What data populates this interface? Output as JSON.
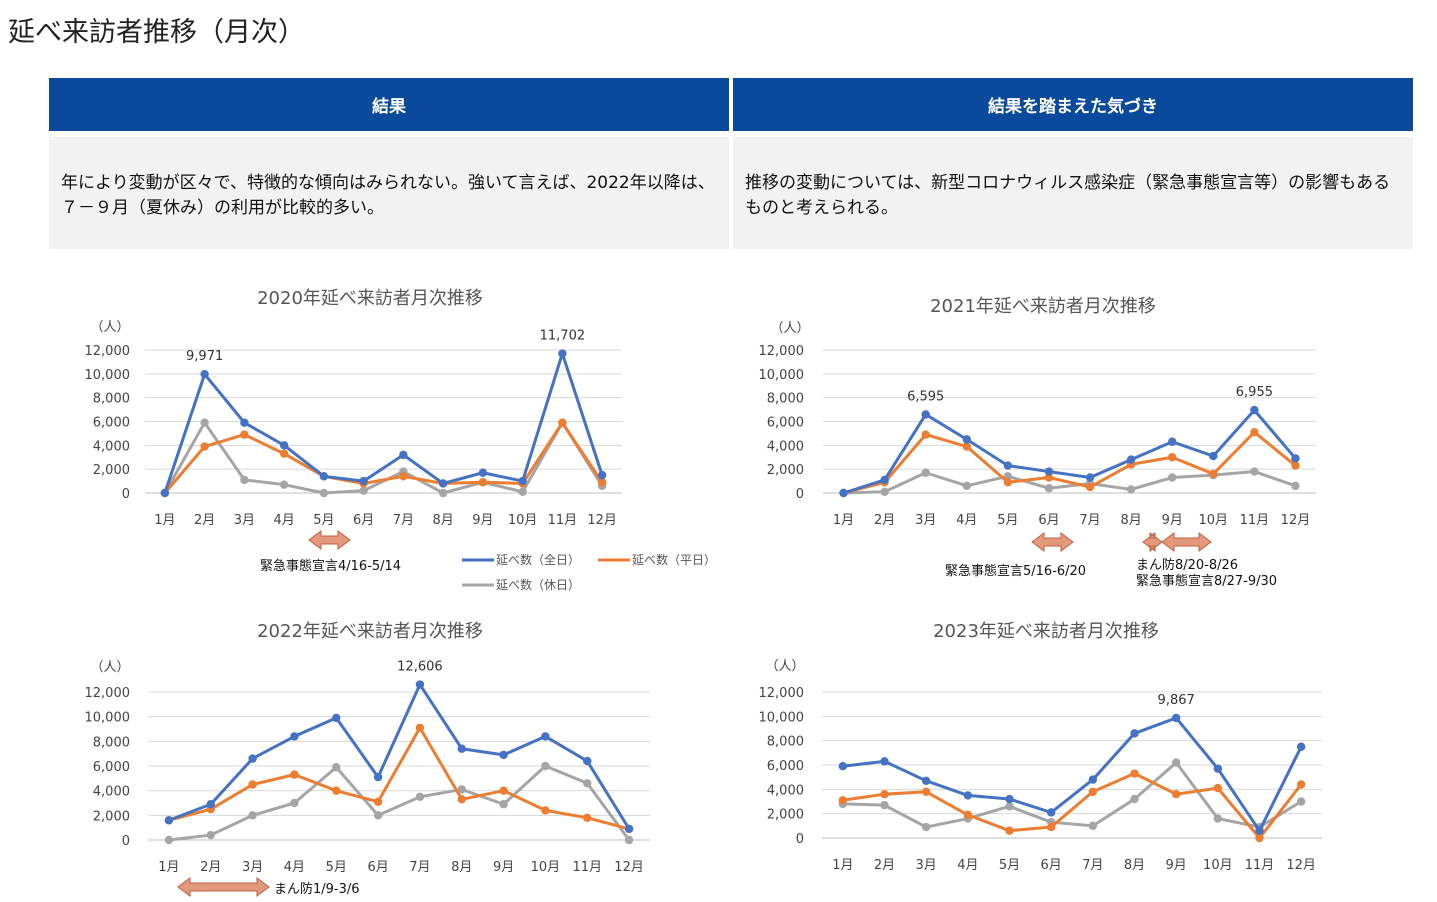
{
  "page_title": "延べ来訪者推移（月次）",
  "panel_left": {
    "header": "結果",
    "body": "年により変動が区々で、特徴的な傾向はみられない。強いて言えば、2022年以降は、７－９月（夏休み）の利用が比較的多い。"
  },
  "panel_right": {
    "header": "結果を踏まえた気づき",
    "body": "推移の変動については、新型コロナウィルス感染症（緊急事態宣言等）の影響もあるものと考えられる。"
  },
  "colors": {
    "all": "#4472c4",
    "weekday": "#ed7d31",
    "holiday": "#a5a5a5",
    "arrow_fill": "#e2997c",
    "arrow_stroke": "#c0603f"
  },
  "legend": [
    "延べ数（全日）",
    "延べ数（平日）",
    "延べ数（休日）"
  ],
  "chart_data": [
    {
      "type": "line",
      "title": "2020年延べ来訪者月次推移",
      "ylabel": "（人）",
      "ylim": [
        0,
        12000
      ],
      "yticks": [
        "0",
        "2,000",
        "4,000",
        "6,000",
        "8,000",
        "10,000",
        "12,000"
      ],
      "categories": [
        "1月",
        "2月",
        "3月",
        "4月",
        "5月",
        "6月",
        "7月",
        "8月",
        "9月",
        "10月",
        "11月",
        "12月"
      ],
      "series": [
        {
          "name": "延べ数（全日）",
          "values": [
            0,
            9971,
            5900,
            4000,
            1400,
            1000,
            3200,
            800,
            1700,
            1000,
            11702,
            1500
          ]
        },
        {
          "name": "延べ数（平日）",
          "values": [
            0,
            3900,
            4900,
            3300,
            1400,
            800,
            1400,
            800,
            900,
            800,
            5900,
            900
          ]
        },
        {
          "name": "延べ数（休日）",
          "values": [
            0,
            5900,
            1100,
            700,
            0,
            200,
            1800,
            0,
            900,
            100,
            5900,
            600
          ]
        }
      ],
      "labels": [
        {
          "series": 0,
          "index": 1,
          "text": "9,971"
        },
        {
          "series": 0,
          "index": 10,
          "text": "11,702"
        }
      ],
      "annotations": [
        {
          "text": "緊急事態宣言4/16-5/14"
        }
      ]
    },
    {
      "type": "line",
      "title": "2021年延べ来訪者月次推移",
      "ylabel": "（人）",
      "ylim": [
        0,
        12000
      ],
      "yticks": [
        "0",
        "2,000",
        "4,000",
        "6,000",
        "8,000",
        "10,000",
        "12,000"
      ],
      "categories": [
        "1月",
        "2月",
        "3月",
        "4月",
        "5月",
        "6月",
        "7月",
        "8月",
        "9月",
        "10月",
        "11月",
        "12月"
      ],
      "series": [
        {
          "name": "延べ数（全日）",
          "values": [
            0,
            1100,
            6595,
            4500,
            2300,
            1800,
            1300,
            2800,
            4300,
            3100,
            6955,
            2900
          ]
        },
        {
          "name": "延べ数（平日）",
          "values": [
            0,
            900,
            4900,
            3900,
            900,
            1300,
            500,
            2400,
            3000,
            1600,
            5100,
            2300
          ]
        },
        {
          "name": "延べ数（休日）",
          "values": [
            0,
            100,
            1700,
            600,
            1400,
            400,
            800,
            300,
            1300,
            1500,
            1800,
            600
          ]
        }
      ],
      "labels": [
        {
          "series": 0,
          "index": 2,
          "text": "6,595"
        },
        {
          "series": 0,
          "index": 10,
          "text": "6,955"
        }
      ],
      "annotations": [
        {
          "text": "緊急事態宣言5/16-6/20"
        },
        {
          "text": "まん防8/20-8/26"
        },
        {
          "text": "緊急事態宣言8/27-9/30"
        }
      ]
    },
    {
      "type": "line",
      "title": "2022年延べ来訪者月次推移",
      "ylabel": "（人）",
      "ylim": [
        0,
        12000
      ],
      "yticks": [
        "0",
        "2,000",
        "4,000",
        "6,000",
        "8,000",
        "10,000",
        "12,000"
      ],
      "categories": [
        "1月",
        "2月",
        "3月",
        "4月",
        "5月",
        "6月",
        "7月",
        "8月",
        "9月",
        "10月",
        "11月",
        "12月"
      ],
      "series": [
        {
          "name": "延べ数（全日）",
          "values": [
            1600,
            2900,
            6600,
            8400,
            9900,
            5100,
            12606,
            7400,
            6900,
            8400,
            6400,
            900
          ]
        },
        {
          "name": "延べ数（平日）",
          "values": [
            1600,
            2500,
            4500,
            5300,
            4000,
            3100,
            9100,
            3300,
            4000,
            2400,
            1800,
            900
          ]
        },
        {
          "name": "延べ数（休日）",
          "values": [
            0,
            400,
            2000,
            3000,
            5900,
            2000,
            3500,
            4100,
            2900,
            6000,
            4600,
            0
          ]
        }
      ],
      "labels": [
        {
          "series": 0,
          "index": 6,
          "text": "12,606"
        }
      ],
      "annotations": [
        {
          "text": "まん防1/9-3/6"
        }
      ]
    },
    {
      "type": "line",
      "title": "2023年延べ来訪者月次推移",
      "ylabel": "（人）",
      "ylim": [
        0,
        12000
      ],
      "yticks": [
        "0",
        "2,000",
        "4,000",
        "6,000",
        "8,000",
        "10,000",
        "12,000"
      ],
      "categories": [
        "1月",
        "2月",
        "3月",
        "4月",
        "5月",
        "6月",
        "7月",
        "8月",
        "9月",
        "10月",
        "11月",
        "12月"
      ],
      "series": [
        {
          "name": "延べ数（全日）",
          "values": [
            5900,
            6300,
            4700,
            3500,
            3200,
            2100,
            4800,
            8600,
            9867,
            5700,
            600,
            7500
          ]
        },
        {
          "name": "延べ数（平日）",
          "values": [
            3100,
            3600,
            3800,
            1900,
            600,
            900,
            3800,
            5300,
            3600,
            4100,
            0,
            4400
          ]
        },
        {
          "name": "延べ数（休日）",
          "values": [
            2800,
            2700,
            900,
            1600,
            2600,
            1300,
            1000,
            3200,
            6200,
            1600,
            900,
            3000
          ]
        }
      ],
      "labels": [
        {
          "series": 0,
          "index": 8,
          "text": "9,867"
        }
      ],
      "annotations": []
    }
  ]
}
